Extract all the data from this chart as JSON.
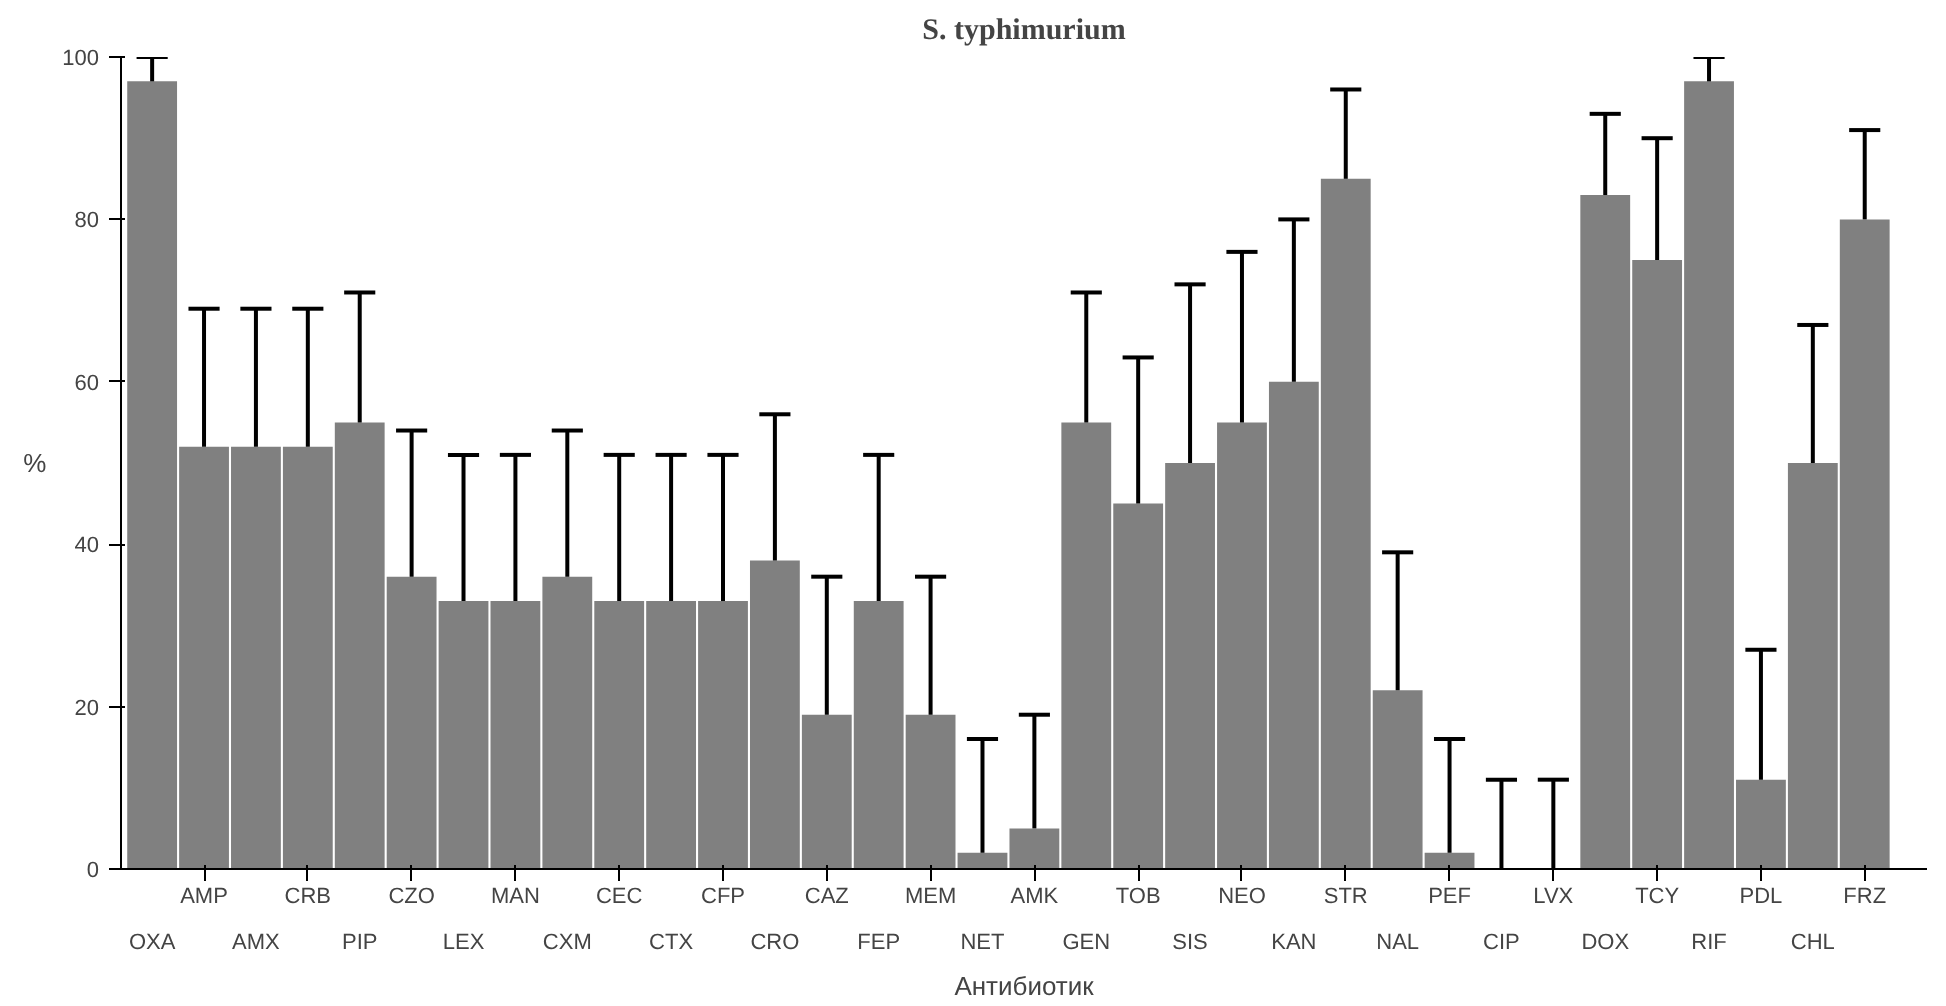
{
  "chart_data": {
    "type": "bar",
    "title": "S. typhimurium",
    "xlabel": "Антибиотик",
    "ylabel": "%",
    "categories": [
      "OXA",
      "AMP",
      "AMX",
      "CRB",
      "PIP",
      "CZO",
      "LEX",
      "MAN",
      "CXM",
      "CEC",
      "CTX",
      "CFP",
      "CRO",
      "CAZ",
      "FEP",
      "MEM",
      "NET",
      "AMK",
      "GEN",
      "TOB",
      "SIS",
      "NEO",
      "KAN",
      "STR",
      "NAL",
      "PEF",
      "CIP",
      "LVX",
      "DOX",
      "TCY",
      "RIF",
      "PDL",
      "CHL",
      "FRZ"
    ],
    "values": [
      97,
      52,
      52,
      52,
      55,
      36,
      33,
      33,
      36,
      33,
      33,
      33,
      38,
      19,
      33,
      19,
      2,
      5,
      55,
      45,
      50,
      55,
      60,
      85,
      22,
      2,
      0,
      0,
      83,
      75,
      97,
      11,
      50,
      80
    ],
    "errors": [
      [
        97,
        100
      ],
      [
        52,
        69
      ],
      [
        52,
        69
      ],
      [
        52,
        69
      ],
      [
        55,
        71
      ],
      [
        36,
        54
      ],
      [
        33,
        51
      ],
      [
        33,
        51
      ],
      [
        36,
        54
      ],
      [
        33,
        51
      ],
      [
        33,
        51
      ],
      [
        33,
        51
      ],
      [
        38,
        56
      ],
      [
        19,
        36
      ],
      [
        33,
        51
      ],
      [
        19,
        36
      ],
      [
        2,
        16
      ],
      [
        5,
        19
      ],
      [
        55,
        71
      ],
      [
        45,
        63
      ],
      [
        50,
        72
      ],
      [
        55,
        76
      ],
      [
        60,
        80
      ],
      [
        85,
        96
      ],
      [
        22,
        39
      ],
      [
        2,
        16
      ],
      [
        0,
        11
      ],
      [
        0,
        11
      ],
      [
        83,
        93
      ],
      [
        75,
        90
      ],
      [
        97,
        100
      ],
      [
        11,
        27
      ],
      [
        50,
        67
      ],
      [
        80,
        91
      ]
    ],
    "color": "#808080",
    "ylim": [
      0,
      100
    ],
    "yticks": [
      0,
      20,
      40,
      60,
      80,
      100
    ],
    "grid": false
  }
}
